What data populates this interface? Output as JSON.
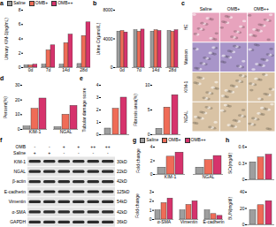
{
  "chart_data": [
    {
      "title": "a",
      "type": "bar",
      "ylabel": "Urinary KIM-1(ng/mL)",
      "categories": [
        "0d",
        "7d",
        "14d",
        "28d"
      ],
      "series": [
        {
          "name": "Saline",
          "color": "#9e9e9e",
          "values": [
            0.3,
            0.4,
            0.4,
            0.5
          ]
        },
        {
          "name": "OMB+",
          "color": "#ef6c57",
          "values": [
            0.3,
            2.4,
            3.4,
            4.4
          ]
        },
        {
          "name": "OMB++",
          "color": "#d6336c",
          "values": [
            0.4,
            3.1,
            4.6,
            6.3
          ]
        }
      ],
      "ylim": [
        0,
        8
      ],
      "yticks": [
        0,
        2,
        4,
        6,
        8
      ],
      "legend": "top"
    },
    {
      "title": "b",
      "type": "bar",
      "ylabel": "Urine Cr(µmol/L)",
      "categories": [
        "0d",
        "7d",
        "14d",
        "28d"
      ],
      "series": [
        {
          "color": "#9e9e9e",
          "values": [
            5000,
            5200,
            5000,
            5100
          ]
        },
        {
          "color": "#ef6c57",
          "values": [
            5100,
            5000,
            5200,
            5000
          ]
        },
        {
          "color": "#d6336c",
          "values": [
            4900,
            5300,
            5100,
            5200
          ]
        }
      ],
      "ylim": [
        0,
        8000
      ],
      "yticks": [
        0,
        4000,
        8000
      ]
    },
    {
      "title": "c",
      "type": "image",
      "columns": [
        "Saline",
        "OMB+",
        "OMB++"
      ],
      "rows": [
        "HE",
        "Masson",
        "KIM-1",
        "NGAL"
      ],
      "colors": [
        "#e7a3bd",
        "#a895c9",
        "#d9c3a5",
        "#d9c3a5"
      ]
    },
    {
      "title": "d",
      "type": "bar",
      "ylabel": "Percent(%)",
      "categories": [
        "KIM-1",
        "NGAL"
      ],
      "series": [
        {
          "color": "#9e9e9e",
          "values": [
            2,
            1.5
          ]
        },
        {
          "color": "#ef6c57",
          "values": [
            14,
            10
          ]
        },
        {
          "color": "#d6336c",
          "values": [
            21,
            16
          ]
        }
      ],
      "ylim": [
        0,
        30
      ],
      "yticks": [
        0,
        10,
        20,
        30
      ]
    },
    {
      "title": "e",
      "type": "bar",
      "ylabel": "Tubular damage score",
      "categories": [
        null,
        null,
        null
      ],
      "values": [
        0.5,
        2.1,
        3.0
      ],
      "colors": [
        "#9e9e9e",
        "#ef6c57",
        "#d6336c"
      ],
      "ylim": [
        0,
        4
      ],
      "yticks": [
        0,
        1,
        2,
        3,
        4
      ],
      "tick_labels": "y"
    },
    {
      "type": "bar",
      "ylabel": "Fibrosis area(%)",
      "categories": [
        null,
        null,
        null
      ],
      "values": [
        1.2,
        5.5,
        8.0
      ],
      "colors": [
        "#9e9e9e",
        "#ef6c57",
        "#d6336c"
      ],
      "ylim": [
        0,
        10
      ],
      "yticks": [
        0,
        5,
        10
      ],
      "tick_labels": "y"
    },
    {
      "title": "f",
      "type": "blot",
      "header": [
        {
          "label": "OMB",
          "marks": [
            "-",
            "-",
            "+",
            "+",
            "++",
            "++"
          ]
        },
        {
          "label": "Saline",
          "marks": [
            "+",
            "+",
            "-",
            "-",
            "-",
            "-"
          ]
        }
      ],
      "rows": [
        "KIM-1",
        "NGAL",
        "β-actin",
        "E-cadherin",
        "Vimentin",
        "α-SMA",
        "GAPDH"
      ],
      "sizes": [
        "30kD",
        "22kD",
        "42kD",
        "125kD",
        "54kD",
        "42kD",
        "36kD"
      ]
    },
    {
      "title": "g",
      "type": "bar",
      "ylabel": "Fold change",
      "categories": [
        "KIM-1",
        "NGAL"
      ],
      "series": [
        {
          "name": "Saline",
          "color": "#9e9e9e",
          "values": [
            1,
            1
          ]
        },
        {
          "name": "OMB+",
          "color": "#ef6c57",
          "values": [
            2.6,
            2.1
          ]
        },
        {
          "name": "OMB++",
          "color": "#d6336c",
          "values": [
            3.2,
            2.7
          ]
        }
      ],
      "ylim": [
        0,
        4
      ],
      "yticks": [
        0,
        2,
        4
      ],
      "legend": "top"
    },
    {
      "type": "bar",
      "ylabel": "Fold change",
      "categories": [
        "α-SMA",
        "Vimentin",
        "E-cadherin"
      ],
      "series": [
        {
          "color": "#9e9e9e",
          "values": [
            1,
            1,
            1
          ]
        },
        {
          "color": "#ef6c57",
          "values": [
            1.8,
            1.6,
            0.6
          ]
        },
        {
          "color": "#d6336c",
          "values": [
            2.3,
            2.0,
            0.4
          ]
        }
      ],
      "ylim": [
        0,
        3
      ],
      "yticks": [
        0,
        1,
        2,
        3
      ]
    },
    {
      "title": "h",
      "type": "bar",
      "ylabel": "SCr(mg/dl)",
      "categories": [
        null,
        null,
        null
      ],
      "values": [
        0.32,
        0.41,
        0.46
      ],
      "colors": [
        "#9e9e9e",
        "#ef6c57",
        "#d6336c"
      ],
      "ylim": [
        0,
        0.6
      ],
      "yticks": [
        0,
        0.3,
        0.6
      ],
      "tick_labels": "y"
    },
    {
      "type": "bar",
      "ylabel": "BUN(mg/dl)",
      "categories": [
        null,
        null,
        null
      ],
      "values": [
        18,
        24,
        29
      ],
      "colors": [
        "#9e9e9e",
        "#ef6c57",
        "#d6336c"
      ],
      "ylim": [
        0,
        40
      ],
      "yticks": [
        0,
        20,
        40
      ],
      "tick_labels": "y"
    }
  ]
}
